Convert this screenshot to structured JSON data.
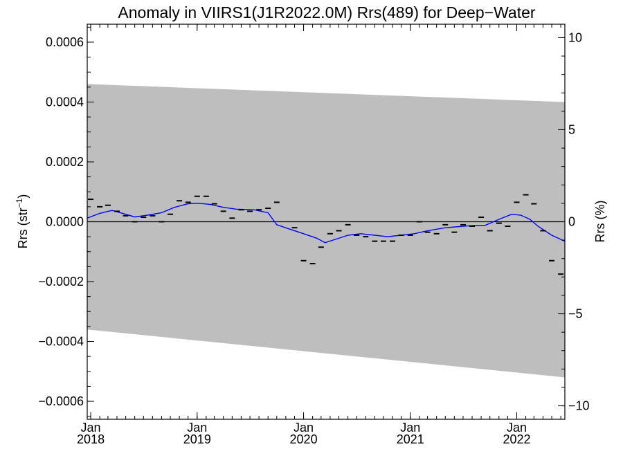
{
  "chart_data": {
    "type": "scatter",
    "title": "Anomaly in VIIRS1(J1R2022.0M) Rrs(489) for Deep−Water",
    "ylabel_left": "Rrs (str",
    "ylabel_left_sup": "−1",
    "ylabel_left_close": ")",
    "ylabel_right": "Rrs (%)",
    "xlim": [
      "2017-12-20",
      "2022-06-15"
    ],
    "ylim": [
      -0.00066,
      0.00066
    ],
    "ylim_right": [
      -10.73,
      10.73
    ],
    "left_ticks": [
      {
        "v": 0.0006,
        "label": "0.0006"
      },
      {
        "v": 0.0004,
        "label": "0.0004"
      },
      {
        "v": 0.0002,
        "label": "0.0002"
      },
      {
        "v": 0.0,
        "label": "0.0000"
      },
      {
        "v": -0.0002,
        "label": "−0.0002"
      },
      {
        "v": -0.0004,
        "label": "−0.0004"
      },
      {
        "v": -0.0006,
        "label": "−0.0006"
      }
    ],
    "right_ticks": [
      {
        "v": 10,
        "label": "10"
      },
      {
        "v": 5,
        "label": "5"
      },
      {
        "v": 0,
        "label": "0"
      },
      {
        "v": -5,
        "label": "−5"
      },
      {
        "v": -10,
        "label": "−10"
      }
    ],
    "x_ticks": [
      {
        "date": "2018-01-01",
        "month": "Jan",
        "year": "2018"
      },
      {
        "date": "2019-01-01",
        "month": "Jan",
        "year": "2019"
      },
      {
        "date": "2020-01-01",
        "month": "Jan",
        "year": "2020"
      },
      {
        "date": "2021-01-01",
        "month": "Jan",
        "year": "2021"
      },
      {
        "date": "2022-01-01",
        "month": "Jan",
        "year": "2022"
      }
    ],
    "band": {
      "color": "#bebebe",
      "upper": [
        [
          "2017-12-20",
          0.00046
        ],
        [
          "2022-06-15",
          0.0004
        ]
      ],
      "lower": [
        [
          "2017-12-20",
          -0.00036
        ],
        [
          "2022-06-15",
          -0.00052
        ]
      ]
    },
    "series": [
      {
        "kind": "markers",
        "color": "#000000",
        "points": [
          [
            "2018-01-01",
            7.5e-05
          ],
          [
            "2018-02-01",
            5e-05
          ],
          [
            "2018-03-01",
            5.5e-05
          ],
          [
            "2018-04-01",
            3.5e-05
          ],
          [
            "2018-05-01",
            2e-05
          ],
          [
            "2018-06-01",
            0.0
          ],
          [
            "2018-07-01",
            1.5e-05
          ],
          [
            "2018-08-01",
            2e-05
          ],
          [
            "2018-09-01",
            0.0
          ],
          [
            "2018-10-01",
            2.5e-05
          ],
          [
            "2018-11-01",
            7e-05
          ],
          [
            "2018-12-01",
            6.5e-05
          ],
          [
            "2019-01-01",
            8.5e-05
          ],
          [
            "2019-02-01",
            8.5e-05
          ],
          [
            "2019-03-01",
            6e-05
          ],
          [
            "2019-04-01",
            3.5e-05
          ],
          [
            "2019-05-01",
            1.2e-05
          ],
          [
            "2019-06-01",
            4e-05
          ],
          [
            "2019-07-01",
            3.5e-05
          ],
          [
            "2019-08-01",
            4e-05
          ],
          [
            "2019-09-01",
            4.5e-05
          ],
          [
            "2019-10-01",
            6.5e-05
          ],
          [
            "2019-12-01",
            -2e-05
          ],
          [
            "2020-01-01",
            -0.00013
          ],
          [
            "2020-02-01",
            -0.00014
          ],
          [
            "2020-03-01",
            -8.5e-05
          ],
          [
            "2020-04-01",
            -4e-05
          ],
          [
            "2020-05-01",
            -3e-05
          ],
          [
            "2020-06-01",
            -1e-05
          ],
          [
            "2020-07-01",
            -4.5e-05
          ],
          [
            "2020-08-01",
            -5e-05
          ],
          [
            "2020-09-01",
            -6.5e-05
          ],
          [
            "2020-10-01",
            -6.5e-05
          ],
          [
            "2020-11-01",
            -6.5e-05
          ],
          [
            "2020-12-01",
            -4.5e-05
          ],
          [
            "2021-01-01",
            -4.5e-05
          ],
          [
            "2021-02-01",
            0.0
          ],
          [
            "2021-03-01",
            -3.5e-05
          ],
          [
            "2021-04-01",
            -4e-05
          ],
          [
            "2021-05-01",
            -1e-05
          ],
          [
            "2021-06-01",
            -3.5e-05
          ],
          [
            "2021-07-01",
            -1e-05
          ],
          [
            "2021-08-01",
            -1.5e-05
          ],
          [
            "2021-09-01",
            1.5e-05
          ],
          [
            "2021-10-01",
            -3e-05
          ],
          [
            "2021-11-01",
            -5e-06
          ],
          [
            "2021-12-01",
            -1.5e-05
          ],
          [
            "2022-01-01",
            6.5e-05
          ],
          [
            "2022-02-01",
            9e-05
          ],
          [
            "2022-03-01",
            6e-05
          ],
          [
            "2022-04-01",
            -3e-05
          ],
          [
            "2022-05-01",
            -0.00013
          ],
          [
            "2022-06-01",
            -0.000175
          ]
        ]
      },
      {
        "kind": "line",
        "color": "#0000ff",
        "points": [
          [
            "2017-12-20",
            1.2e-05
          ],
          [
            "2018-02-01",
            2.8e-05
          ],
          [
            "2018-03-15",
            3.8e-05
          ],
          [
            "2018-05-01",
            2.5e-05
          ],
          [
            "2018-06-01",
            1.6e-05
          ],
          [
            "2018-07-15",
            2.2e-05
          ],
          [
            "2018-09-01",
            3e-05
          ],
          [
            "2018-10-15",
            4.8e-05
          ],
          [
            "2018-12-01",
            6e-05
          ],
          [
            "2019-01-01",
            6.2e-05
          ],
          [
            "2019-02-15",
            5.8e-05
          ],
          [
            "2019-04-01",
            4.8e-05
          ],
          [
            "2019-05-15",
            4.2e-05
          ],
          [
            "2019-07-15",
            4e-05
          ],
          [
            "2019-09-01",
            3e-05
          ],
          [
            "2019-10-01",
            -1e-05
          ],
          [
            "2019-11-15",
            -2.5e-05
          ],
          [
            "2020-01-01",
            -4e-05
          ],
          [
            "2020-02-15",
            -5.5e-05
          ],
          [
            "2020-03-15",
            -7e-05
          ],
          [
            "2020-04-15",
            -6e-05
          ],
          [
            "2020-06-01",
            -4.5e-05
          ],
          [
            "2020-07-15",
            -4e-05
          ],
          [
            "2020-09-01",
            -4.5e-05
          ],
          [
            "2020-10-15",
            -5e-05
          ],
          [
            "2020-12-01",
            -4.5e-05
          ],
          [
            "2021-01-15",
            -4e-05
          ],
          [
            "2021-03-01",
            -3e-05
          ],
          [
            "2021-05-01",
            -2e-05
          ],
          [
            "2021-07-01",
            -1.5e-05
          ],
          [
            "2021-08-15",
            -1.2e-05
          ],
          [
            "2021-09-15",
            -1.2e-05
          ],
          [
            "2021-11-01",
            8e-06
          ],
          [
            "2021-12-15",
            2.5e-05
          ],
          [
            "2022-01-15",
            2.2e-05
          ],
          [
            "2022-02-15",
            8e-06
          ],
          [
            "2022-03-15",
            -1.5e-05
          ],
          [
            "2022-05-01",
            -4.5e-05
          ],
          [
            "2022-06-15",
            -6.5e-05
          ]
        ]
      }
    ],
    "zero_line": true,
    "grid": false,
    "legend": "none"
  }
}
